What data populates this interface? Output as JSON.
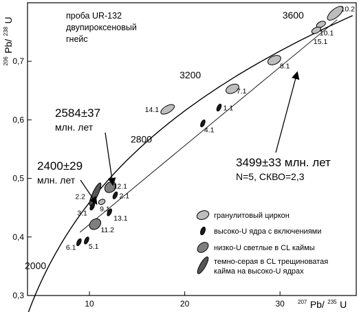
{
  "chart_data": {
    "type": "scatter",
    "title": "",
    "sample_note": [
      "проба UR-132",
      "двупироксеновый",
      "гнейс"
    ],
    "xlabel": {
      "base": "Pb/",
      "pre": "207",
      "sup": "235",
      "tail": "U"
    },
    "ylabel": {
      "base": "Pb/",
      "pre": "206",
      "sup": "238",
      "tail": "U"
    },
    "xlim": [
      3.5,
      38
    ],
    "ylim": [
      0.3,
      0.8
    ],
    "x_ticks": [
      10,
      20,
      30
    ],
    "y_ticks": [
      0.3,
      0.4,
      0.5,
      0.6,
      0.7
    ],
    "y_tick_labels": [
      "0,3",
      "0,4",
      "0,5",
      "0,6",
      "0,7"
    ],
    "concordia_ticks": [
      {
        "label": "2000",
        "x": 6.1,
        "y": 0.364
      },
      {
        "label": "2800",
        "x": 14.9,
        "y": 0.547
      },
      {
        "label": "3200",
        "x": 20.9,
        "y": 0.645
      },
      {
        "label": "3600",
        "x": 30.4,
        "y": 0.747
      }
    ],
    "discordia": {
      "x": [
        9.0,
        36.0
      ],
      "y": [
        0.408,
        0.771
      ]
    },
    "categories_legend": [
      {
        "label": "гранулитовый циркон",
        "fill": "#bdbdbd",
        "shape": "ellipse"
      },
      {
        "label": "высоко-U ядра с включениями",
        "fill": "#1a1a1a",
        "shape": "small"
      },
      {
        "label": "низко-U светлые в CL каймы",
        "fill": "#7f7f7f",
        "shape": "ellipse"
      },
      {
        "label": "темно-серая в CL трещиноватая кайма на высоко-U ядрах",
        "legend_lines": [
          "темно-серая в CL трещиноватая",
          "кайма на высоко-U ядрах"
        ],
        "fill": "#555555",
        "shape": "elongated"
      }
    ],
    "points": [
      {
        "label": "14.1",
        "x": 18.2,
        "y": 0.618,
        "cat": 0
      },
      {
        "label": "7.1",
        "x": 25.0,
        "y": 0.653,
        "cat": 0
      },
      {
        "label": "8.1",
        "x": 29.4,
        "y": 0.702,
        "cat": 0
      },
      {
        "label": "10.1",
        "x": 34.3,
        "y": 0.763,
        "cat": 0
      },
      {
        "label": "10.2",
        "x": 35.8,
        "y": 0.782,
        "cat": 0
      },
      {
        "label": "15.1",
        "x": 33.8,
        "y": 0.753,
        "cat": 0
      },
      {
        "label": "1.1",
        "x": 23.6,
        "y": 0.621,
        "cat": 1
      },
      {
        "label": "4.1",
        "x": 21.9,
        "y": 0.594,
        "cat": 1
      },
      {
        "label": "2.1",
        "x": 12.7,
        "y": 0.471,
        "cat": 1
      },
      {
        "label": "13.1",
        "x": 12.1,
        "y": 0.442,
        "cat": 1
      },
      {
        "label": "6.1",
        "x": 8.9,
        "y": 0.391,
        "cat": 1
      },
      {
        "label": "5.1",
        "x": 9.7,
        "y": 0.394,
        "cat": 1
      },
      {
        "label": "3.1",
        "x": 10.3,
        "y": 0.452,
        "cat": 1
      },
      {
        "label": "12.1",
        "x": 12.2,
        "y": 0.485,
        "cat": 2
      },
      {
        "label": "9.1",
        "x": 11.3,
        "y": 0.46,
        "cat": 0
      },
      {
        "label": "11.2",
        "x": 10.6,
        "y": 0.422,
        "cat": 2
      },
      {
        "label": "2.2",
        "x": 10.6,
        "y": 0.473,
        "cat": 3
      }
    ],
    "annotations": [
      {
        "id": "a2584",
        "lines": [
          "2584±37",
          "млн. лет"
        ]
      },
      {
        "id": "a2400",
        "lines": [
          "2400±29",
          "млн. лет"
        ]
      },
      {
        "id": "a3499",
        "lines": [
          "3499±33 млн. лет",
          "N=5, СКВО=2,3"
        ]
      }
    ],
    "grid": false,
    "legend_position": "lower-right"
  }
}
